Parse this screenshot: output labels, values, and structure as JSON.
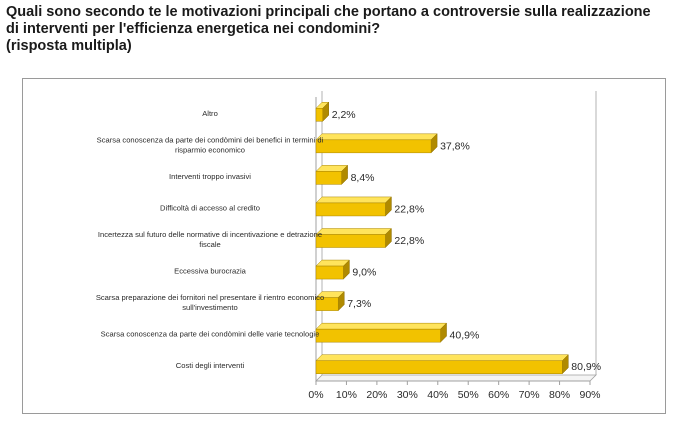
{
  "title": {
    "line1": "Quali sono secondo te le motivazioni principali che portano a controversie sulla realizzazione",
    "line2": "di interventi per l'efficienza energetica nei condomini?",
    "line3": "(risposta multipla)"
  },
  "colors": {
    "bar_front": "#f2c200",
    "bar_top": "#ffe45c",
    "bar_side": "#b08a00",
    "axis": "#a0a0a0",
    "text": "#2a2a2a"
  },
  "chart_data": {
    "type": "bar",
    "orientation": "horizontal",
    "style": "3d",
    "categories": [
      [
        "Altro"
      ],
      [
        "Scarsa conoscenza da parte dei condòmini dei benefici in termini di",
        "risparmio economico"
      ],
      [
        "Interventi troppo invasivi"
      ],
      [
        "Difficoltà di accesso al credito"
      ],
      [
        "Incertezza sul futuro delle normative di incentivazione e detrazione",
        "fiscale"
      ],
      [
        "Eccessiva burocrazia"
      ],
      [
        "Scarsa preparazione dei fornitori nel presentare il rientro economico",
        "sull'investimento"
      ],
      [
        "Scarsa conoscenza da parte dei condòmini delle varie tecnologie"
      ],
      [
        "Costi degli interventi"
      ]
    ],
    "values": [
      2.2,
      37.8,
      8.4,
      22.8,
      22.8,
      9.0,
      7.3,
      40.9,
      80.9
    ],
    "value_labels": [
      "2,2%",
      "37,8%",
      "8,4%",
      "22,8%",
      "22,8%",
      "9,0%",
      "7,3%",
      "40,9%",
      "80,9%"
    ],
    "xlim": [
      0,
      90
    ],
    "xticks": [
      "0%",
      "10%",
      "20%",
      "30%",
      "40%",
      "50%",
      "60%",
      "70%",
      "80%",
      "90%"
    ],
    "grid": false,
    "legend": "none"
  }
}
